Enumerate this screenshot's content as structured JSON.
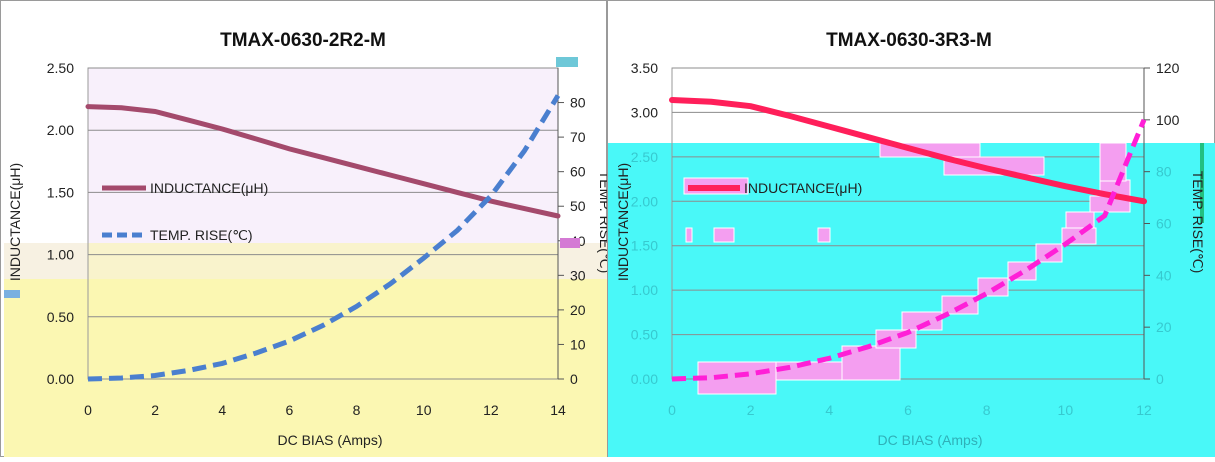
{
  "chart_data": [
    {
      "type": "line",
      "title": "TMAX-0630-2R2-M",
      "xlabel": "DC BIAS  (Amps)",
      "ylabel_left": "INDUCTANCE(μH)",
      "ylabel_right": "TEMP. RISE(℃)",
      "x_ticks": [
        "0",
        "2",
        "4",
        "6",
        "8",
        "10",
        "12",
        "14"
      ],
      "y_left_ticks": [
        "0.00",
        "0.50",
        "1.00",
        "1.50",
        "2.00",
        "2.50"
      ],
      "y_right_ticks": [
        "0",
        "10",
        "20",
        "30",
        "40",
        "50",
        "60",
        "70",
        "80"
      ],
      "xlim": [
        0,
        14
      ],
      "ylim_left": [
        0,
        2.5
      ],
      "ylim_right": [
        0,
        90
      ],
      "grid": true,
      "legend_position": "left",
      "series": [
        {
          "name": "INDUCTANCE(μH)",
          "axis": "left",
          "color": "#a44a6c",
          "style": "solid",
          "x": [
            0,
            1,
            2,
            3,
            4,
            5,
            6,
            7,
            8,
            9,
            10,
            11,
            12,
            13,
            14
          ],
          "y": [
            2.19,
            2.18,
            2.15,
            2.08,
            2.01,
            1.93,
            1.85,
            1.78,
            1.71,
            1.64,
            1.57,
            1.5,
            1.43,
            1.37,
            1.31
          ]
        },
        {
          "name": "TEMP. RISE(℃)",
          "axis": "right",
          "color": "#4a7fcf",
          "style": "dashed",
          "x": [
            0,
            1,
            2,
            3,
            4,
            5,
            6,
            7,
            8,
            9,
            10,
            11,
            12,
            13,
            14
          ],
          "y": [
            0,
            0.3,
            1,
            2.5,
            4.5,
            7.5,
            11,
            15.5,
            21,
            27.5,
            35,
            43,
            53,
            66,
            82
          ]
        }
      ]
    },
    {
      "type": "line",
      "title": "TMAX-0630-3R3-M",
      "xlabel": "DC BIAS  (Amps)",
      "ylabel_left": "INDUCTANCE(μH)",
      "ylabel_right": "TEMP. RISE(℃)",
      "x_ticks": [
        "0",
        "2",
        "4",
        "6",
        "8",
        "10",
        "12"
      ],
      "y_left_ticks": [
        "0.00",
        "0.50",
        "1.00",
        "1.50",
        "2.00",
        "2.50",
        "3.00",
        "3.50"
      ],
      "y_right_ticks": [
        "0",
        "20",
        "40",
        "60",
        "80",
        "100",
        "120"
      ],
      "xlim": [
        0,
        12
      ],
      "ylim_left": [
        0,
        3.5
      ],
      "ylim_right": [
        0,
        120
      ],
      "grid": true,
      "legend_position": "left",
      "series": [
        {
          "name": "INDUCTANCE(μH)",
          "axis": "left",
          "color": "#ff1f5a",
          "style": "solid",
          "x": [
            0,
            1,
            2,
            3,
            4,
            5,
            6,
            7,
            8,
            9,
            10,
            11,
            12
          ],
          "y": [
            3.14,
            3.12,
            3.07,
            2.96,
            2.84,
            2.72,
            2.6,
            2.48,
            2.37,
            2.27,
            2.17,
            2.08,
            2.0
          ]
        },
        {
          "name": "TEMP. RISE(℃)",
          "axis": "right",
          "color": "#ff1fd7",
          "style": "dashed",
          "x": [
            0,
            1,
            2,
            3,
            4,
            5,
            6,
            7,
            8,
            9,
            10,
            11,
            12
          ],
          "y": [
            0,
            0.5,
            2,
            4.5,
            8,
            12.5,
            18,
            25,
            33,
            42,
            52,
            63,
            100
          ]
        }
      ]
    }
  ]
}
